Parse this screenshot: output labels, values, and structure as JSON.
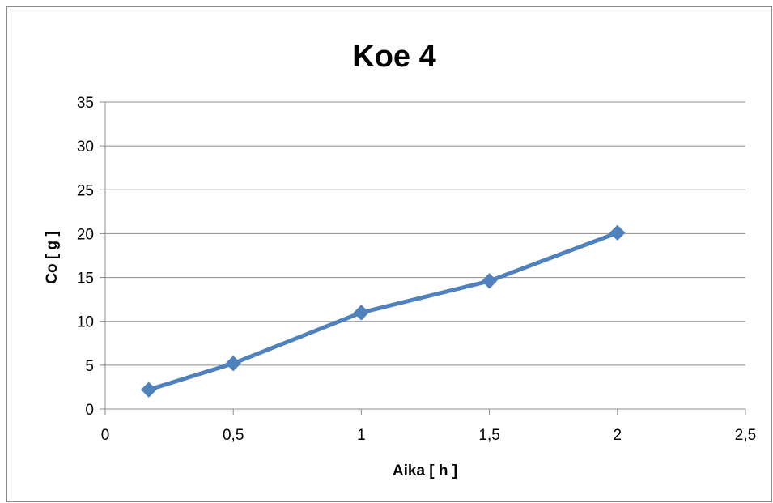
{
  "chart_data": {
    "type": "line",
    "title": "Koe 4",
    "xlabel": "Aika [ h ]",
    "ylabel": "Co [ g ]",
    "xlim": [
      0,
      2.5
    ],
    "ylim": [
      0,
      35
    ],
    "x_ticks": [
      0,
      0.5,
      1,
      1.5,
      2,
      2.5
    ],
    "x_tick_labels": [
      "0",
      "0,5",
      "1",
      "1,5",
      "2",
      "2,5"
    ],
    "y_ticks": [
      0,
      5,
      10,
      15,
      20,
      25,
      30,
      35
    ],
    "y_tick_labels": [
      "0",
      "5",
      "10",
      "15",
      "20",
      "25",
      "30",
      "35"
    ],
    "grid": "horizontal",
    "legend": "none",
    "series": [
      {
        "color": "#4f81bd",
        "marker": "diamond",
        "x": [
          0.17,
          0.5,
          1,
          1.5,
          2
        ],
        "y": [
          2.2,
          5.2,
          11,
          14.6,
          20.1
        ]
      }
    ]
  }
}
